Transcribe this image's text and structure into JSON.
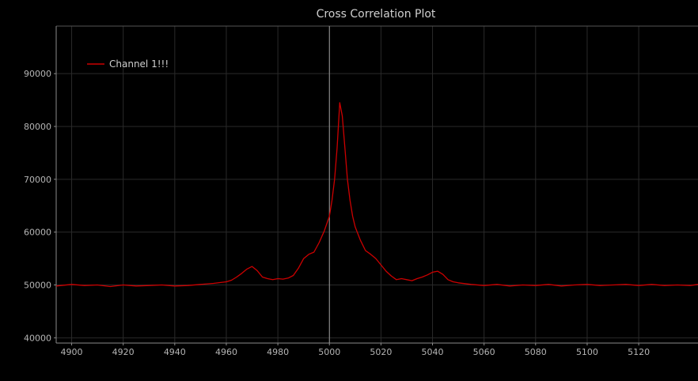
{
  "chart_data": {
    "type": "line",
    "title": "Cross Correlation Plot",
    "xlabel": "",
    "ylabel": "",
    "xlim": [
      4894,
      5143
    ],
    "ylim": [
      39000,
      99000
    ],
    "x_ticks": [
      4900,
      4920,
      4940,
      4960,
      4980,
      5000,
      5020,
      5040,
      5060,
      5080,
      5100,
      5120
    ],
    "y_ticks": [
      40000,
      50000,
      60000,
      70000,
      80000,
      90000
    ],
    "grid": true,
    "legend_position": "top-left",
    "highlight_x": 5000,
    "colors": {
      "background": "#000000",
      "grid": "#2a2a2a",
      "axis": "#8a8a8a",
      "series": "#cc0000",
      "crosshair": "#9a9a9a"
    },
    "series": [
      {
        "name": "Channel 1!!!",
        "x": [
          4894,
          4900,
          4905,
          4910,
          4915,
          4920,
          4925,
          4930,
          4935,
          4940,
          4945,
          4950,
          4955,
          4960,
          4962,
          4964,
          4966,
          4968,
          4970,
          4972,
          4974,
          4976,
          4978,
          4980,
          4982,
          4984,
          4986,
          4988,
          4990,
          4992,
          4994,
          4996,
          4998,
          5000,
          5001,
          5002,
          5003,
          5004,
          5005,
          5006,
          5007,
          5008,
          5009,
          5010,
          5012,
          5014,
          5016,
          5018,
          5020,
          5022,
          5024,
          5026,
          5028,
          5030,
          5032,
          5034,
          5036,
          5038,
          5040,
          5042,
          5044,
          5046,
          5048,
          5050,
          5055,
          5060,
          5065,
          5070,
          5075,
          5080,
          5085,
          5090,
          5095,
          5100,
          5105,
          5110,
          5115,
          5120,
          5125,
          5130,
          5135,
          5140,
          5143
        ],
        "y": [
          49800,
          50100,
          49900,
          50000,
          49700,
          50000,
          49800,
          49900,
          50000,
          49800,
          49900,
          50100,
          50300,
          50600,
          50900,
          51500,
          52200,
          53000,
          53500,
          52700,
          51500,
          51200,
          51000,
          51200,
          51100,
          51300,
          51800,
          53200,
          55000,
          55800,
          56200,
          58000,
          60200,
          63000,
          66000,
          70000,
          76000,
          84500,
          82000,
          76000,
          70000,
          66000,
          63000,
          61000,
          58500,
          56500,
          55800,
          55000,
          53800,
          52600,
          51700,
          51000,
          51200,
          51000,
          50800,
          51200,
          51500,
          51900,
          52400,
          52600,
          52000,
          51000,
          50600,
          50400,
          50100,
          49900,
          50100,
          49800,
          50000,
          49900,
          50100,
          49800,
          50000,
          50100,
          49900,
          50000,
          50100,
          49900,
          50100,
          49900,
          50000,
          49900,
          50100
        ]
      }
    ]
  }
}
